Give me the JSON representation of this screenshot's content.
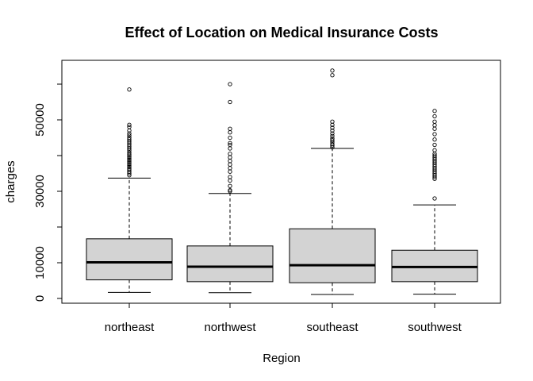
{
  "chart_data": {
    "type": "boxplot",
    "title": "Effect of Location on Medical Insurance Costs",
    "xlabel": "Region",
    "ylabel": "charges",
    "categories": [
      "northeast",
      "northwest",
      "southeast",
      "southwest"
    ],
    "ylim": [
      0,
      64000
    ],
    "y_ticks": [
      0,
      10000,
      30000,
      50000
    ],
    "y_tick_labels": [
      "0",
      "10000",
      "30000",
      "50000"
    ],
    "grid": false,
    "legend": "none",
    "box_fill": "#d3d3d3",
    "boxes": [
      {
        "name": "northeast",
        "whisker_low": 1700,
        "q1": 5200,
        "median": 10100,
        "q3": 16700,
        "whisker_high": 33700,
        "outliers": [
          34500,
          35000,
          35500,
          36000,
          36400,
          36800,
          37200,
          37600,
          38000,
          38400,
          38800,
          39200,
          39600,
          40000,
          40400,
          40900,
          41500,
          42000,
          42500,
          43000,
          43500,
          44000,
          44500,
          45000,
          45600,
          46200,
          47000,
          48000,
          48600,
          58500
        ]
      },
      {
        "name": "northwest",
        "whisker_low": 1600,
        "q1": 4700,
        "median": 8900,
        "q3": 14700,
        "whisker_high": 29400,
        "outliers": [
          30000,
          30300,
          31500,
          33000,
          34000,
          35500,
          36500,
          37500,
          38500,
          39500,
          40500,
          42000,
          43000,
          43500,
          45000,
          46500,
          47500,
          55000,
          60000
        ]
      },
      {
        "name": "southeast",
        "whisker_low": 1100,
        "q1": 4400,
        "median": 9300,
        "q3": 19500,
        "whisker_high": 42000,
        "outliers": [
          42300,
          42800,
          43200,
          43800,
          44300,
          44800,
          45500,
          46200,
          47000,
          47800,
          48600,
          49500,
          62500,
          63800
        ]
      },
      {
        "name": "southwest",
        "whisker_low": 1200,
        "q1": 4700,
        "median": 8800,
        "q3": 13500,
        "whisker_high": 26200,
        "outliers": [
          28000,
          33500,
          34000,
          34500,
          35000,
          35500,
          36000,
          36500,
          37000,
          37500,
          38000,
          38500,
          39000,
          39500,
          40000,
          40500,
          41500,
          43000,
          44500,
          46000,
          47500,
          48500,
          49500,
          51000,
          52500
        ]
      }
    ]
  }
}
